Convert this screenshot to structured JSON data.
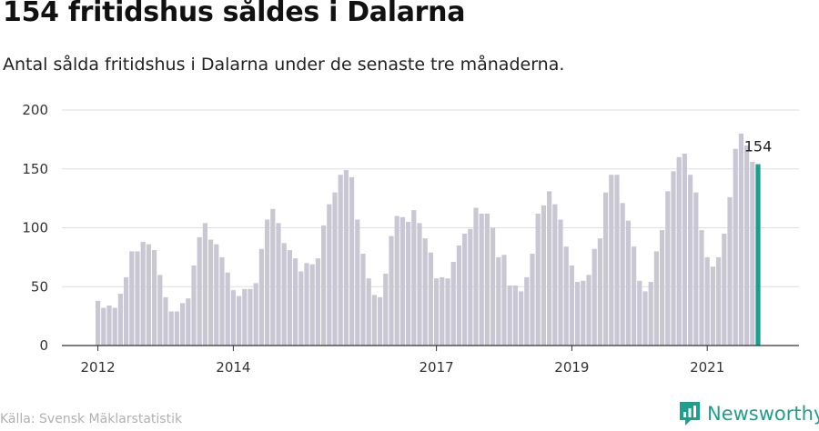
{
  "header": {
    "title": "154 fritidshus såldes i Dalarna",
    "subtitle": "Antal sålda fritidshus i Dalarna under de senaste tre månaderna."
  },
  "footer": {
    "source": "Källa: Svensk Mäklarstatistik",
    "brand": "Newsworthy",
    "brand_icon": "newsworthy-logo-icon"
  },
  "colors": {
    "bar": "#c8c7d3",
    "highlight": "#1a9e8e",
    "grid": "#dddddd",
    "axis": "#333333",
    "brand": "#1f9e8c"
  },
  "chart_data": {
    "type": "bar",
    "title": "",
    "xlabel": "",
    "ylabel": "",
    "ylim": [
      0,
      200
    ],
    "yticks": [
      0,
      50,
      100,
      150,
      200
    ],
    "xticks": [
      "2012",
      "2014",
      "2017",
      "2019",
      "2021"
    ],
    "grid": true,
    "highlight_last": true,
    "annotation": "154",
    "values": [
      38,
      32,
      34,
      32,
      44,
      58,
      80,
      80,
      88,
      86,
      81,
      60,
      41,
      29,
      29,
      36,
      40,
      68,
      92,
      104,
      90,
      86,
      75,
      62,
      47,
      42,
      48,
      48,
      53,
      82,
      107,
      116,
      104,
      87,
      81,
      74,
      63,
      70,
      69,
      74,
      102,
      120,
      130,
      145,
      149,
      143,
      107,
      78,
      57,
      43,
      41,
      61,
      93,
      110,
      109,
      105,
      115,
      104,
      91,
      79,
      57,
      58,
      57,
      71,
      85,
      95,
      99,
      117,
      112,
      112,
      100,
      75,
      77,
      51,
      51,
      46,
      58,
      78,
      112,
      119,
      131,
      120,
      107,
      84,
      68,
      54,
      55,
      60,
      82,
      91,
      130,
      145,
      145,
      121,
      106,
      84,
      55,
      46,
      54,
      80,
      98,
      131,
      148,
      160,
      163,
      145,
      130,
      98,
      75,
      67,
      75,
      95,
      126,
      167,
      180,
      170,
      156,
      154
    ]
  }
}
